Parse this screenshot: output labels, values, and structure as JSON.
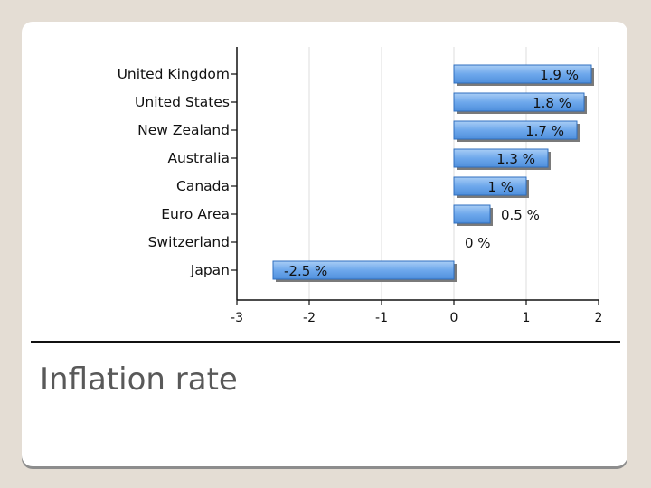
{
  "colors": {
    "bar_fill": "#6ea8ec",
    "bar_edge": "#2f6fbf",
    "shadow": "#7a7a7a",
    "grid": "#dcdcdc"
  },
  "caption": "Inflation rate",
  "chart_data": {
    "type": "bar",
    "orientation": "horizontal",
    "title": "",
    "xlabel": "",
    "ylabel": "",
    "categories": [
      "United Kingdom",
      "United States",
      "New Zealand",
      "Australia",
      "Canada",
      "Euro Area",
      "Switzerland",
      "Japan"
    ],
    "values": [
      1.9,
      1.8,
      1.7,
      1.3,
      1,
      0.5,
      0,
      -2.5
    ],
    "data_labels": [
      "1.9 %",
      "1.8 %",
      "1.7 %",
      "1.3 %",
      "1 %",
      "0.5 %",
      "0 %",
      "-2.5 %"
    ],
    "xlim": [
      -3,
      2
    ],
    "xticks": [
      "-3",
      "-2",
      "-1",
      "0",
      "1",
      "2"
    ],
    "grid": true,
    "legend": "none"
  }
}
